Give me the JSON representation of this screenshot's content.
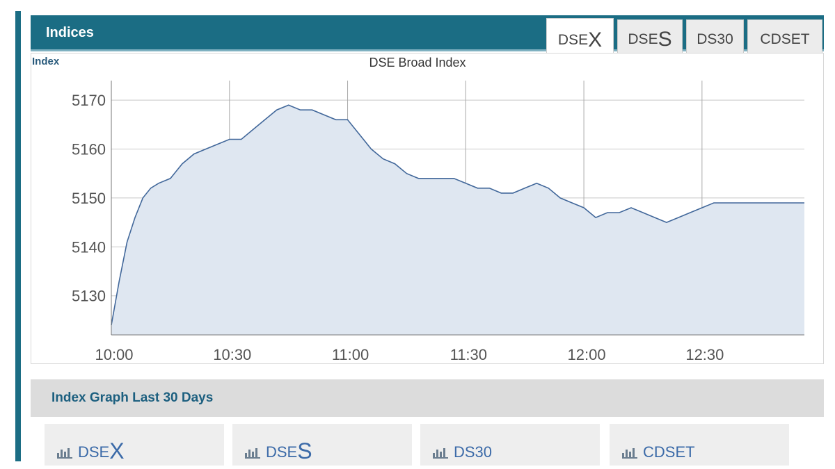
{
  "header": {
    "title": "Indices"
  },
  "tabs": [
    {
      "prefix": "DSE",
      "big": "X",
      "active": true
    },
    {
      "prefix": "DSE",
      "big": "S",
      "active": false
    },
    {
      "prefix": "DS30",
      "big": "",
      "active": false
    },
    {
      "prefix": "CDSET",
      "big": "",
      "active": false
    }
  ],
  "chart": {
    "y_axis_label": "Index",
    "title": "DSE Broad Index"
  },
  "chart_data": {
    "type": "area",
    "title": "DSE Broad Index",
    "ylabel": "Index",
    "xlabel": "",
    "x_ticks": [
      "10:00",
      "10:30",
      "11:00",
      "11:30",
      "12:00",
      "12:30"
    ],
    "y_ticks": [
      5130,
      5140,
      5150,
      5160,
      5170
    ],
    "ylim": [
      5122,
      5174
    ],
    "xlim_minutes": [
      0,
      176
    ],
    "grid": true,
    "series": [
      {
        "x": [
          0,
          2,
          4,
          6,
          8,
          10,
          12,
          15,
          18,
          21,
          24,
          27,
          30,
          33,
          36,
          39,
          42,
          45,
          48,
          51,
          54,
          57,
          60,
          63,
          66,
          69,
          72,
          75,
          78,
          81,
          84,
          87,
          90,
          93,
          96,
          99,
          102,
          105,
          108,
          111,
          114,
          117,
          120,
          123,
          126,
          129,
          132,
          135,
          138,
          141,
          144,
          147,
          150,
          153,
          156,
          159,
          162,
          165,
          168,
          171,
          174,
          176
        ],
        "values": [
          5124,
          5133,
          5141,
          5146,
          5150,
          5152,
          5153,
          5154,
          5157,
          5159,
          5160,
          5161,
          5162,
          5162,
          5164,
          5166,
          5168,
          5169,
          5168,
          5168,
          5167,
          5166,
          5166,
          5163,
          5160,
          5158,
          5157,
          5155,
          5154,
          5154,
          5154,
          5154,
          5153,
          5152,
          5152,
          5151,
          5151,
          5152,
          5153,
          5152,
          5150,
          5149,
          5148,
          5146,
          5147,
          5147,
          5148,
          5147,
          5146,
          5145,
          5146,
          5147,
          5148,
          5149,
          5149,
          5149,
          5149,
          5149,
          5149,
          5149,
          5149,
          5149
        ]
      }
    ],
    "line_color": "#41679a",
    "fill_color": "#dfe7f1"
  },
  "section": {
    "title": "Index Graph Last 30 Days"
  },
  "links": [
    {
      "prefix": "DSE",
      "big": "X",
      "icon": "bar-chart-icon"
    },
    {
      "prefix": "DSE",
      "big": "S",
      "icon": "bar-chart-icon"
    },
    {
      "prefix": "DS30",
      "big": "",
      "icon": "bar-chart-icon"
    },
    {
      "prefix": "CDSET",
      "big": "",
      "icon": "bar-chart-icon"
    }
  ]
}
